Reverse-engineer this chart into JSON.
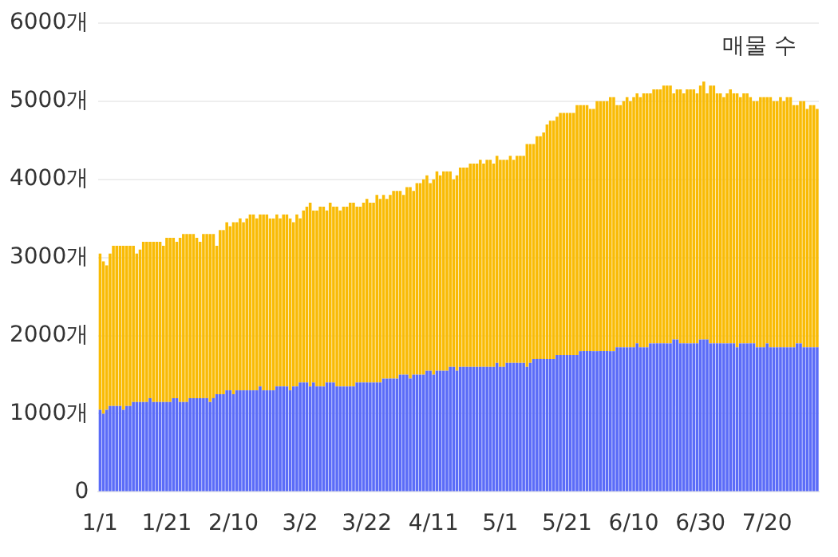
{
  "chart_data": {
    "type": "bar",
    "stacked": true,
    "categories": [
      "1/1",
      null,
      null,
      null,
      null,
      null,
      null,
      null,
      null,
      null,
      null,
      null,
      null,
      null,
      null,
      null,
      null,
      null,
      null,
      null,
      "1/21",
      null,
      null,
      null,
      null,
      null,
      null,
      null,
      null,
      null,
      null,
      null,
      null,
      null,
      null,
      null,
      null,
      null,
      null,
      null,
      "2/10",
      null,
      null,
      null,
      null,
      null,
      null,
      null,
      null,
      null,
      null,
      null,
      null,
      null,
      null,
      null,
      null,
      null,
      null,
      null,
      "3/2",
      null,
      null,
      null,
      null,
      null,
      null,
      null,
      null,
      null,
      null,
      null,
      null,
      null,
      null,
      null,
      null,
      null,
      null,
      null,
      "3/22",
      null,
      null,
      null,
      null,
      null,
      null,
      null,
      null,
      null,
      null,
      null,
      null,
      null,
      null,
      null,
      null,
      null,
      null,
      null,
      "4/11",
      null,
      null,
      null,
      null,
      null,
      null,
      null,
      null,
      null,
      null,
      null,
      null,
      null,
      null,
      null,
      null,
      null,
      null,
      null,
      "5/1",
      null,
      null,
      null,
      null,
      null,
      null,
      null,
      null,
      null,
      null,
      null,
      null,
      null,
      null,
      null,
      null,
      null,
      null,
      null,
      "5/21",
      null,
      null,
      null,
      null,
      null,
      null,
      null,
      null,
      null,
      null,
      null,
      null,
      null,
      null,
      null,
      null,
      null,
      null,
      null,
      "6/10",
      null,
      null,
      null,
      null,
      null,
      null,
      null,
      null,
      null,
      null,
      null,
      null,
      null,
      null,
      null,
      null,
      null,
      null,
      null,
      "6/30",
      null,
      null,
      null,
      null,
      null,
      null,
      null,
      null,
      null,
      null,
      null,
      null,
      null,
      null,
      null,
      null,
      null,
      null,
      null,
      "7/20",
      null,
      null,
      null,
      null,
      null,
      null,
      null,
      null,
      null,
      null,
      null,
      null,
      null,
      null,
      null
    ],
    "series": [
      {
        "color": "#5b6cf8",
        "values": [
          1050,
          1000,
          1050,
          1100,
          1100,
          1100,
          1100,
          1050,
          1100,
          1100,
          1150,
          1150,
          1150,
          1150,
          1150,
          1200,
          1150,
          1150,
          1150,
          1150,
          1150,
          1150,
          1200,
          1200,
          1150,
          1150,
          1150,
          1200,
          1200,
          1200,
          1200,
          1200,
          1200,
          1150,
          1200,
          1250,
          1250,
          1250,
          1300,
          1300,
          1250,
          1300,
          1300,
          1300,
          1300,
          1300,
          1300,
          1300,
          1350,
          1300,
          1300,
          1300,
          1300,
          1350,
          1350,
          1350,
          1350,
          1300,
          1350,
          1350,
          1400,
          1400,
          1400,
          1350,
          1400,
          1350,
          1350,
          1350,
          1400,
          1400,
          1400,
          1350,
          1350,
          1350,
          1350,
          1350,
          1350,
          1400,
          1400,
          1400,
          1400,
          1400,
          1400,
          1400,
          1400,
          1450,
          1450,
          1450,
          1450,
          1450,
          1500,
          1500,
          1500,
          1450,
          1500,
          1500,
          1500,
          1500,
          1550,
          1550,
          1500,
          1550,
          1550,
          1550,
          1550,
          1600,
          1600,
          1550,
          1600,
          1600,
          1600,
          1600,
          1600,
          1600,
          1600,
          1600,
          1600,
          1600,
          1600,
          1650,
          1600,
          1600,
          1650,
          1650,
          1650,
          1650,
          1650,
          1650,
          1600,
          1650,
          1700,
          1700,
          1700,
          1700,
          1700,
          1700,
          1700,
          1750,
          1750,
          1750,
          1750,
          1750,
          1750,
          1750,
          1800,
          1800,
          1800,
          1800,
          1800,
          1800,
          1800,
          1800,
          1800,
          1800,
          1800,
          1850,
          1850,
          1850,
          1850,
          1850,
          1850,
          1900,
          1850,
          1850,
          1850,
          1900,
          1900,
          1900,
          1900,
          1900,
          1900,
          1900,
          1950,
          1950,
          1900,
          1900,
          1900,
          1900,
          1900,
          1900,
          1950,
          1950,
          1950,
          1900,
          1900,
          1900,
          1900,
          1900,
          1900,
          1900,
          1900,
          1850,
          1900,
          1900,
          1900,
          1900,
          1900,
          1850,
          1850,
          1850,
          1900,
          1850,
          1850,
          1850,
          1850,
          1850,
          1850,
          1850,
          1850,
          1900,
          1900,
          1850,
          1850,
          1850,
          1850,
          1850
        ]
      },
      {
        "color": "#f9bb05",
        "values": [
          2000,
          1950,
          1850,
          1950,
          2050,
          2050,
          2050,
          2100,
          2050,
          2050,
          2000,
          1900,
          1950,
          2050,
          2050,
          2000,
          2050,
          2050,
          2050,
          2000,
          2100,
          2100,
          2050,
          2000,
          2100,
          2150,
          2150,
          2100,
          2100,
          2050,
          2000,
          2100,
          2100,
          2150,
          2100,
          1900,
          2100,
          2100,
          2150,
          2100,
          2200,
          2150,
          2200,
          2150,
          2200,
          2250,
          2250,
          2200,
          2200,
          2250,
          2250,
          2200,
          2200,
          2200,
          2150,
          2200,
          2200,
          2200,
          2100,
          2200,
          2100,
          2200,
          2250,
          2350,
          2200,
          2250,
          2300,
          2300,
          2200,
          2300,
          2250,
          2300,
          2250,
          2300,
          2300,
          2350,
          2350,
          2250,
          2250,
          2300,
          2350,
          2300,
          2300,
          2400,
          2350,
          2350,
          2300,
          2350,
          2400,
          2400,
          2350,
          2300,
          2400,
          2450,
          2350,
          2450,
          2450,
          2500,
          2500,
          2400,
          2500,
          2550,
          2500,
          2550,
          2550,
          2500,
          2400,
          2500,
          2550,
          2550,
          2550,
          2600,
          2600,
          2600,
          2650,
          2600,
          2650,
          2650,
          2600,
          2650,
          2650,
          2650,
          2600,
          2650,
          2600,
          2650,
          2650,
          2650,
          2850,
          2800,
          2750,
          2850,
          2850,
          2900,
          3000,
          3050,
          3050,
          3050,
          3100,
          3100,
          3100,
          3100,
          3100,
          3200,
          3150,
          3150,
          3150,
          3100,
          3100,
          3200,
          3200,
          3200,
          3200,
          3250,
          3250,
          3100,
          3100,
          3150,
          3200,
          3150,
          3200,
          3200,
          3200,
          3250,
          3250,
          3200,
          3250,
          3250,
          3250,
          3300,
          3300,
          3300,
          3150,
          3200,
          3250,
          3200,
          3250,
          3250,
          3250,
          3200,
          3250,
          3300,
          3150,
          3300,
          3300,
          3200,
          3200,
          3150,
          3200,
          3250,
          3200,
          3250,
          3150,
          3200,
          3200,
          3150,
          3100,
          3150,
          3200,
          3200,
          3150,
          3200,
          3150,
          3150,
          3200,
          3150,
          3200,
          3200,
          3100,
          3050,
          3100,
          3150,
          3050,
          3100,
          3100,
          3050
        ]
      }
    ],
    "ylim": [
      0,
      6000
    ],
    "yticks": [
      0,
      {
        "value": 1000,
        "label": "1000개"
      },
      {
        "value": 2000,
        "label": "2000개"
      },
      {
        "value": 3000,
        "label": "3000개"
      },
      {
        "value": 4000,
        "label": "4000개"
      },
      {
        "value": 5000,
        "label": "5000개"
      },
      {
        "value": 6000,
        "label": "6000개"
      }
    ],
    "grid": "y",
    "annotations": [
      "매물 수"
    ]
  }
}
